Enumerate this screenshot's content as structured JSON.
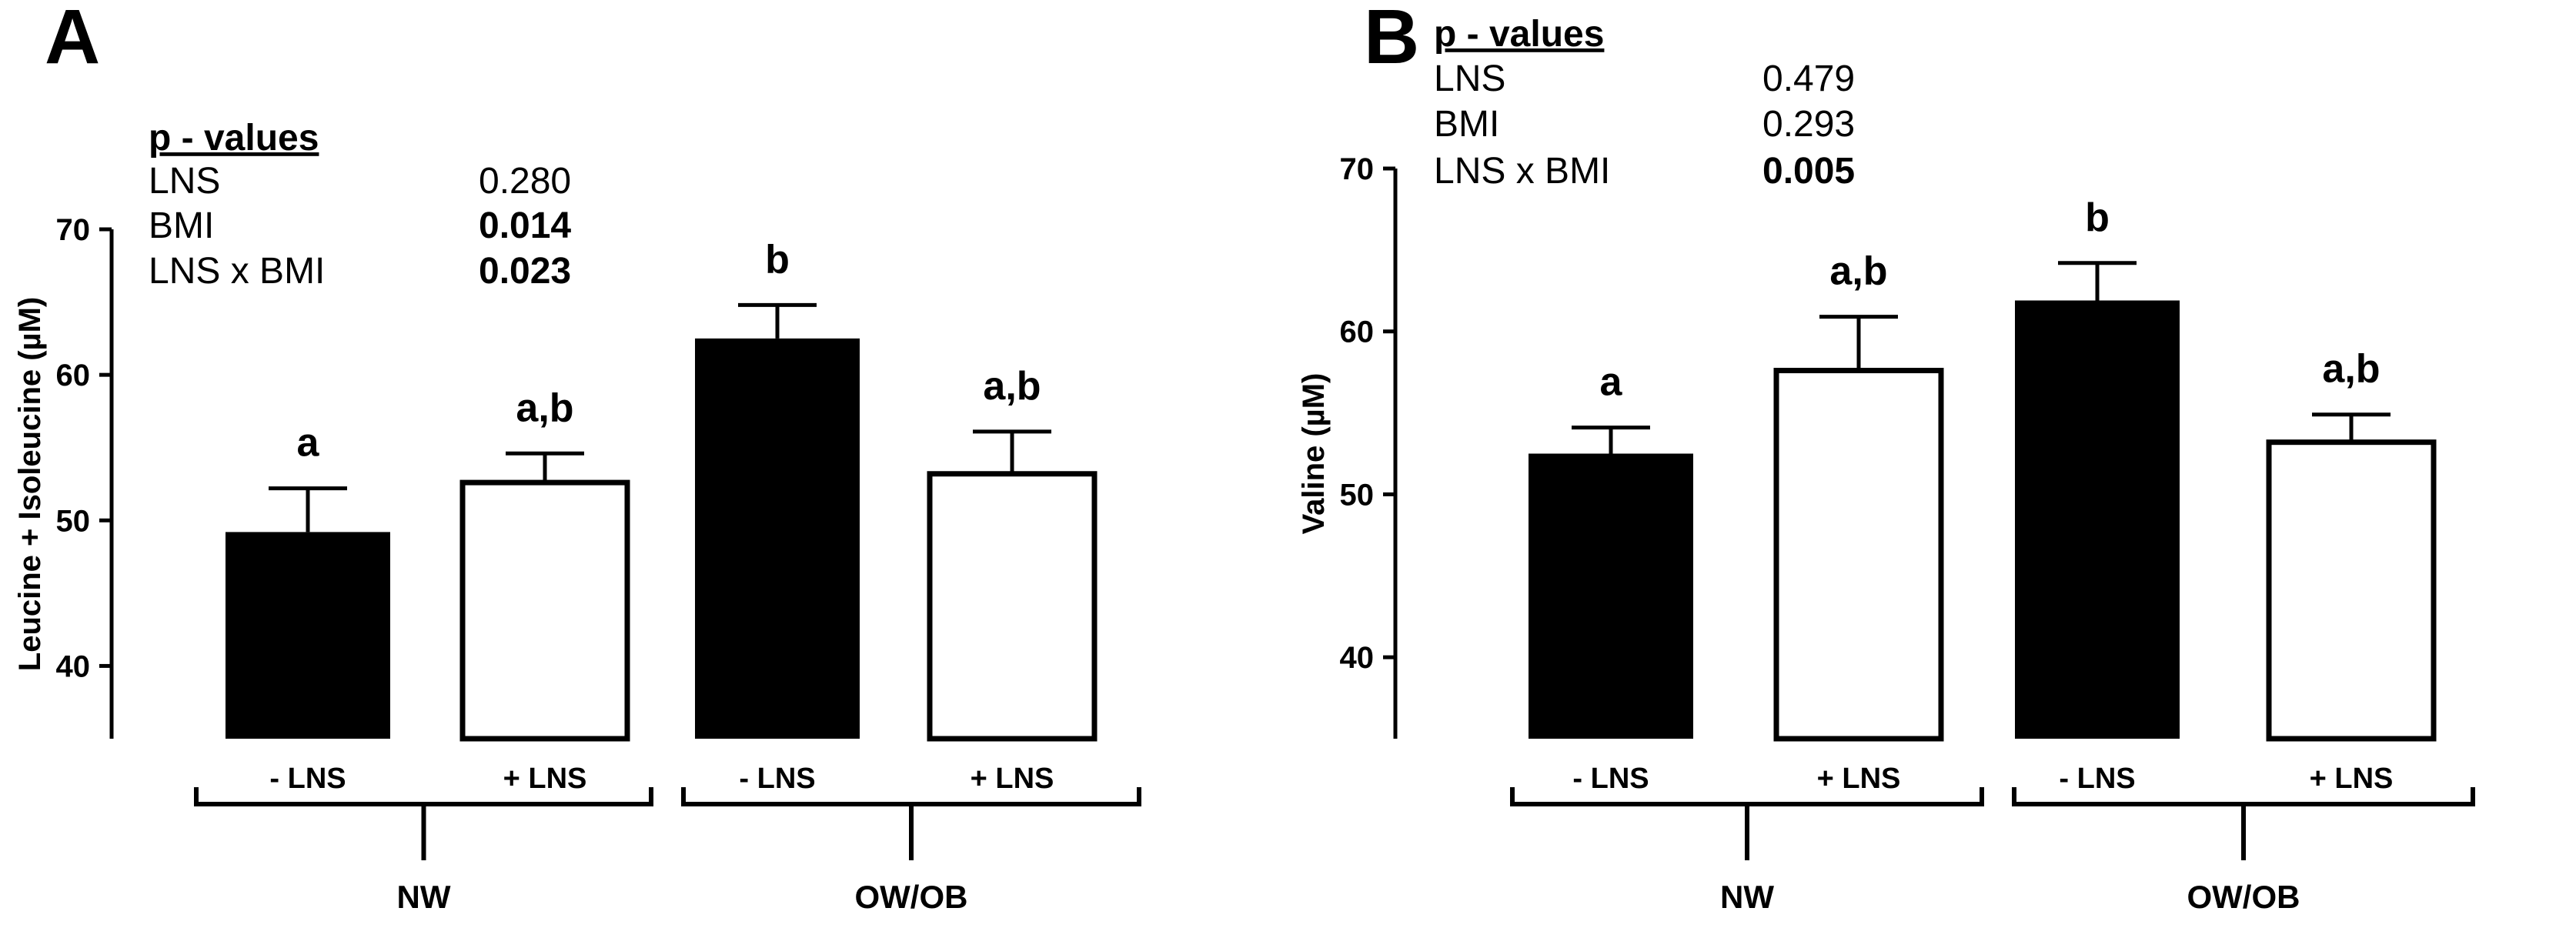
{
  "chart_data": [
    {
      "type": "bar",
      "panel": "A",
      "ylabel": "Leucine + Isoleucine (µM)",
      "ylim": [
        35,
        70
      ],
      "yticks": [
        40,
        50,
        60,
        70
      ],
      "categories": [
        "- LNS",
        "+ LNS",
        "- LNS",
        "+ LNS"
      ],
      "groups": [
        {
          "label": "NW",
          "categories": [
            0,
            1
          ]
        },
        {
          "label": "OW/OB",
          "categories": [
            2,
            3
          ]
        }
      ],
      "values": [
        49.2,
        52.6,
        62.5,
        53.2
      ],
      "errors": [
        3.0,
        2.0,
        2.3,
        2.9
      ],
      "fills": [
        "#000000",
        "#ffffff",
        "#000000",
        "#ffffff"
      ],
      "significance": [
        "a",
        "a,b",
        "b",
        "a,b"
      ],
      "pvalues": {
        "title": "p - values",
        "rows": [
          {
            "label": "LNS",
            "value": "0.280",
            "bold": false
          },
          {
            "label": "BMI",
            "value": "0.014",
            "bold": true
          },
          {
            "label": "LNS x BMI",
            "value": "0.023",
            "bold": true
          }
        ]
      }
    },
    {
      "type": "bar",
      "panel": "B",
      "ylabel": "Valine (µM)",
      "ylim": [
        35,
        70
      ],
      "yticks": [
        40,
        50,
        60,
        70
      ],
      "categories": [
        "- LNS",
        "+ LNS",
        "- LNS",
        "+ LNS"
      ],
      "groups": [
        {
          "label": "NW",
          "categories": [
            0,
            1
          ]
        },
        {
          "label": "OW/OB",
          "categories": [
            2,
            3
          ]
        }
      ],
      "values": [
        52.5,
        57.6,
        61.9,
        53.2
      ],
      "errors": [
        1.6,
        3.3,
        2.3,
        1.7
      ],
      "fills": [
        "#000000",
        "#ffffff",
        "#000000",
        "#ffffff"
      ],
      "significance": [
        "a",
        "a,b",
        "b",
        "a,b"
      ],
      "pvalues": {
        "title": "p - values",
        "rows": [
          {
            "label": "LNS",
            "value": "0.479",
            "bold": false
          },
          {
            "label": "BMI",
            "value": "0.293",
            "bold": false
          },
          {
            "label": "LNS x BMI",
            "value": "0.005",
            "bold": true
          }
        ]
      }
    }
  ]
}
